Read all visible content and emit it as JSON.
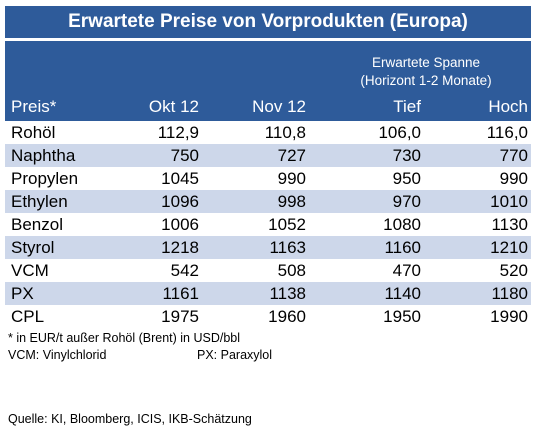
{
  "title": "Erwartete Preise von Vorprodukten (Europa)",
  "header": {
    "spanne_line1": "Erwartete Spanne",
    "spanne_line2": "(Horizont 1-2 Monate)",
    "columns": [
      "Preis*",
      "Okt 12",
      "Nov 12",
      "Tief",
      "Hoch"
    ]
  },
  "rows": [
    {
      "name": "Rohöl",
      "values": [
        "112,9",
        "110,8",
        "106,0",
        "116,0"
      ]
    },
    {
      "name": "Naphtha",
      "values": [
        "750",
        "727",
        "730",
        "770"
      ]
    },
    {
      "name": "Propylen",
      "values": [
        "1045",
        "990",
        "950",
        "990"
      ]
    },
    {
      "name": "Ethylen",
      "values": [
        "1096",
        "998",
        "970",
        "1010"
      ]
    },
    {
      "name": "Benzol",
      "values": [
        "1006",
        "1052",
        "1080",
        "1130"
      ]
    },
    {
      "name": "Styrol",
      "values": [
        "1218",
        "1163",
        "1160",
        "1210"
      ]
    },
    {
      "name": "VCM",
      "values": [
        "542",
        "508",
        "470",
        "520"
      ]
    },
    {
      "name": "PX",
      "values": [
        "1161",
        "1138",
        "1140",
        "1180"
      ]
    },
    {
      "name": "CPL",
      "values": [
        "1975",
        "1960",
        "1950",
        "1990"
      ]
    }
  ],
  "footnotes": {
    "unit_note": "* in EUR/t außer Rohöl (Brent) in USD/bbl",
    "abbr_vcm": "VCM: Vinylchlorid",
    "abbr_px": "PX: Paraxylol"
  },
  "source": "Quelle: KI, Bloomberg, ICIS, IKB-Schätzung",
  "colors": {
    "header_blue": "#2e5b9a",
    "row_shade": "#cdd7ea"
  }
}
